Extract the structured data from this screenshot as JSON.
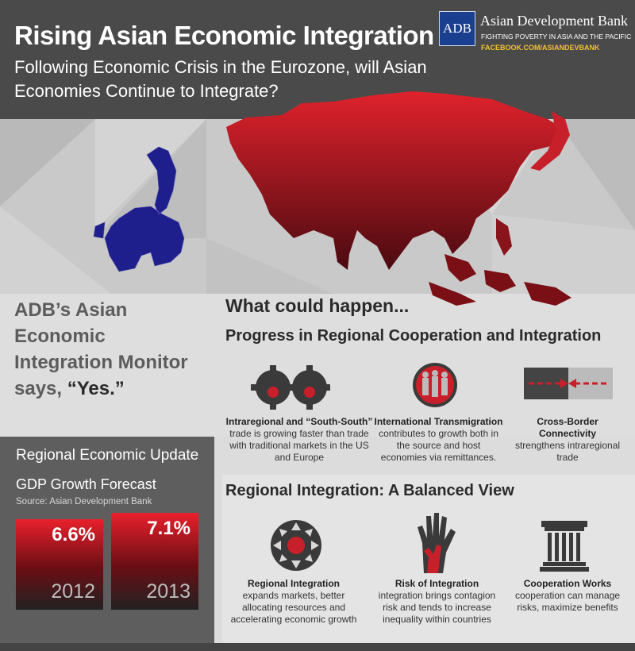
{
  "header": {
    "title": "Rising Asian Economic Integration",
    "subtitle": "Following Economic Crisis in the Eurozone, will Asian Economies Continue to Integrate?"
  },
  "logo": {
    "abbr": "ADB",
    "name": "Asian Development Bank",
    "tagline": "FIGHTING POVERTY IN ASIA AND THE PACIFIC",
    "facebook": "FACEBOOK.COM/ASIANDEVBANK"
  },
  "monitor": {
    "line1": "ADB’s Asian Economic",
    "line2": "Integration Monitor",
    "says": "says, ",
    "yes": "“Yes.”"
  },
  "what_could_happen": "What could happen...",
  "progress": {
    "title": "Progress in Regional Cooperation and Integration",
    "items": [
      {
        "bold": "Intraregional and “South-South”",
        "text": "trade is growing faster than trade with traditional markets in the US and Europe",
        "icon": "gears-icon"
      },
      {
        "bold": "International Transmigration",
        "text": "contributes to growth both in the source and host economies via remittances.",
        "icon": "people-icon"
      },
      {
        "bold": "Cross-Border Connectivity",
        "text": "strengthens intraregional trade",
        "icon": "arrows-icon"
      }
    ]
  },
  "update": {
    "title": "Regional Economic Update",
    "gdp_title": "GDP Growth Forecast",
    "source": "Source: Asian Development Bank",
    "bars": [
      {
        "value": "6.6%",
        "year": "2012",
        "growth": 6.6
      },
      {
        "value": "7.1%",
        "year": "2013",
        "growth": 7.1
      }
    ]
  },
  "balanced": {
    "title": "Regional Integration: A Balanced View",
    "items": [
      {
        "bold": "Regional Integration",
        "text": "expands markets, better allocating resources and accelerating economic growth",
        "icon": "expand-arrows-icon"
      },
      {
        "bold": "Risk of Integration",
        "text": "integration brings contagion risk and tends to increase inequality within countries",
        "icon": "hands-icon"
      },
      {
        "bold": "Cooperation Works",
        "text": "cooperation can manage risks, maximize benefits",
        "icon": "pillar-icon"
      }
    ]
  },
  "colors": {
    "asia_red": "#c8202a",
    "europe_blue": "#1e1e8c",
    "header_gray": "#4a4a4a",
    "accent_yellow": "#f2c230"
  }
}
